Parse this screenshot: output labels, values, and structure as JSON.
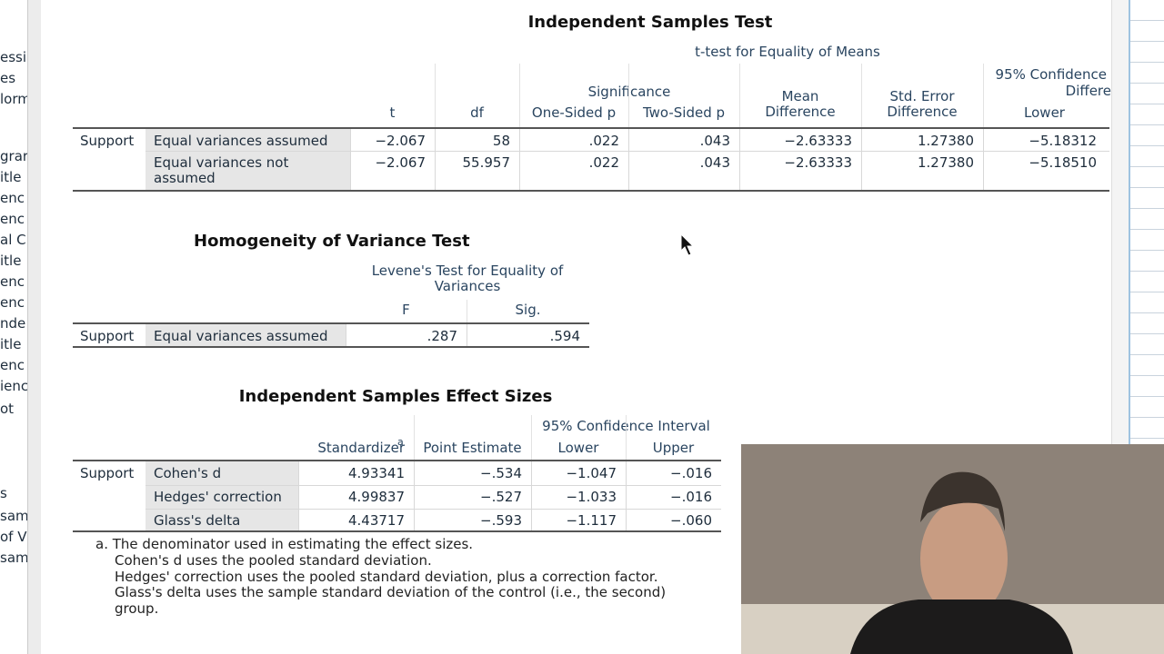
{
  "sidebar": [
    "essi",
    "es",
    "lorm",
    "grar",
    "itle",
    "enc",
    "enc",
    "al C",
    "itle",
    "enc",
    "enc",
    "nde",
    "itle",
    "enc",
    "ienc",
    "ot",
    "s",
    "samp",
    "of V",
    "samp"
  ],
  "t_test": {
    "title": "Independent Samples Test",
    "group_header": "t-test for Equality of Means",
    "significance": "Significance",
    "ci_header": "95% Confidence",
    "ci_header_cut": "Differe",
    "columns": [
      "t",
      "df",
      "One-Sided p",
      "Two-Sided p",
      "Mean Difference",
      "Std. Error Difference",
      "Lower"
    ],
    "rows": [
      {
        "group": "Support",
        "label": "Equal variances assumed",
        "cells": [
          "−2.067",
          "58",
          ".022",
          ".043",
          "−2.63333",
          "1.27380",
          "−5.18312"
        ]
      },
      {
        "label": "Equal variances not assumed",
        "cells": [
          "−2.067",
          "55.957",
          ".022",
          ".043",
          "−2.63333",
          "1.27380",
          "−5.18510"
        ]
      }
    ]
  },
  "levene": {
    "title": "Homogeneity of Variance Test",
    "group_header": "Levene's Test for Equality of Variances",
    "columns": [
      "F",
      "Sig."
    ],
    "rows": [
      {
        "group": "Support",
        "label": "Equal variances assumed",
        "cells": [
          ".287",
          ".594"
        ]
      }
    ]
  },
  "effect": {
    "title": "Independent Samples Effect Sizes",
    "ci_header": "95% Confidence Interval",
    "columns": [
      "Standardizer",
      "Point Estimate",
      "Lower",
      "Upper"
    ],
    "footnote_mark": "a",
    "rows": [
      {
        "group": "Support",
        "label": "Cohen's d",
        "cells": [
          "4.93341",
          "−.534",
          "−1.047",
          "−.016"
        ]
      },
      {
        "label": "Hedges' correction",
        "cells": [
          "4.99837",
          "−.527",
          "−1.033",
          "−.016"
        ]
      },
      {
        "label": "Glass's delta",
        "cells": [
          "4.43717",
          "−.593",
          "−1.117",
          "−.060"
        ]
      }
    ],
    "footnotes": [
      "a. The denominator used in estimating the effect sizes.",
      "Cohen's d uses the pooled standard deviation.",
      "Hedges' correction uses the pooled standard deviation, plus a correction factor.",
      "Glass's delta uses the sample standard deviation of the control (i.e., the second)",
      "group."
    ]
  }
}
